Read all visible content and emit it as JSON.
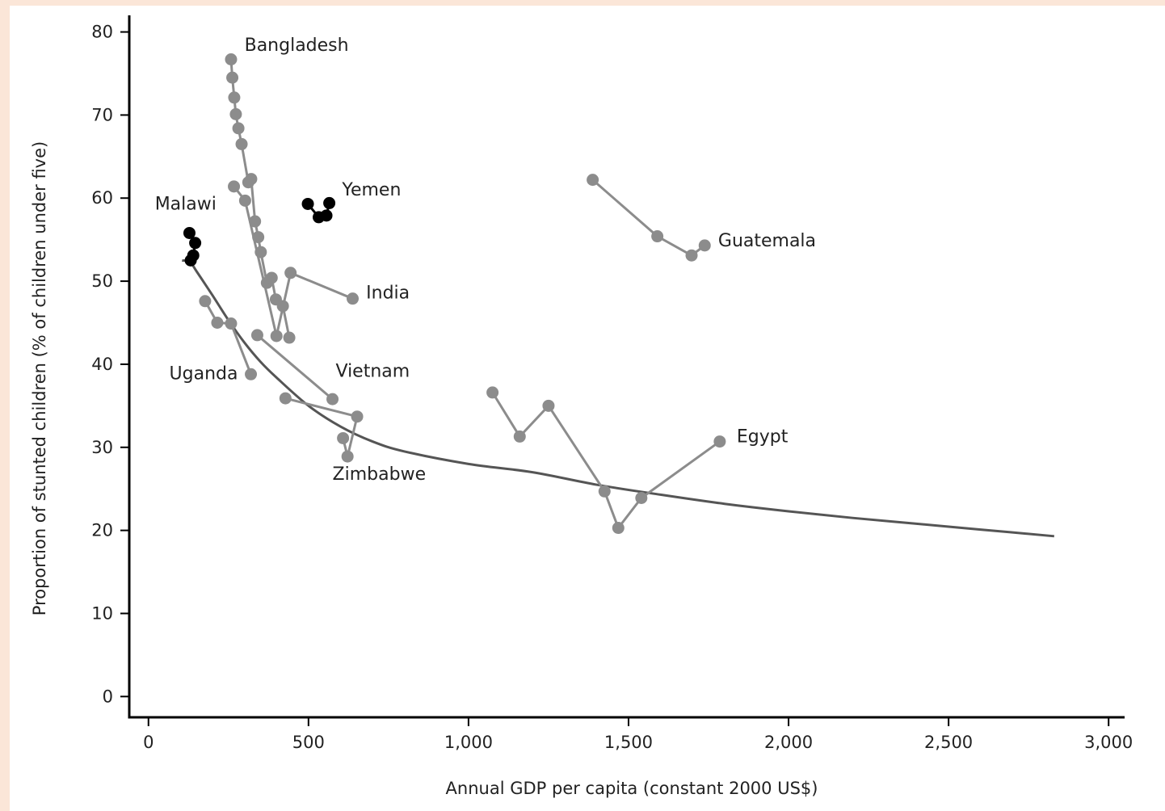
{
  "chart_data": {
    "type": "scatter",
    "xlabel": "Annual GDP per capita (constant 2000 US$)",
    "ylabel": "Proportion of stunted children (% of children under five)",
    "xlim": [
      -60,
      3050
    ],
    "ylim": [
      -2.5,
      82
    ],
    "x_ticks": [
      0,
      500,
      1000,
      1500,
      2000,
      2500,
      3000
    ],
    "x_tick_labels": [
      "0",
      "500",
      "1,000",
      "1,500",
      "2,000",
      "2,500",
      "3,000"
    ],
    "y_ticks": [
      0,
      10,
      20,
      30,
      40,
      50,
      60,
      70,
      80
    ],
    "y_tick_labels": [
      "0",
      "10",
      "20",
      "30",
      "40",
      "50",
      "60",
      "70",
      "80"
    ],
    "colors": {
      "grey_series": "#8c8c8c",
      "black_series": "#000000",
      "trend": "#555555",
      "axis": "#000000"
    },
    "series": [
      {
        "name": "Bangladesh",
        "color": "grey",
        "points": [
          [
            258,
            76.7
          ],
          [
            262,
            74.5
          ],
          [
            268,
            72.1
          ],
          [
            273,
            70.1
          ],
          [
            281,
            68.4
          ],
          [
            291,
            66.5
          ],
          [
            312,
            61.9
          ],
          [
            321,
            62.3
          ],
          [
            333,
            57.2
          ],
          [
            343,
            55.3
          ],
          [
            351,
            53.5
          ],
          [
            370,
            49.8
          ],
          [
            385,
            50.4
          ],
          [
            398,
            47.8
          ],
          [
            420,
            47.0
          ],
          [
            440,
            43.2
          ]
        ]
      },
      {
        "name": "India",
        "color": "grey",
        "points": [
          [
            267,
            61.4
          ],
          [
            302,
            59.7
          ],
          [
            400,
            43.4
          ],
          [
            444,
            51.0
          ],
          [
            638,
            47.9
          ]
        ]
      },
      {
        "name": "Vietnam",
        "color": "grey",
        "points": [
          [
            340,
            43.5
          ],
          [
            575,
            35.8
          ]
        ]
      },
      {
        "name": "Zimbabwe",
        "color": "grey",
        "points": [
          [
            428,
            35.9
          ],
          [
            652,
            33.7
          ],
          [
            622,
            28.9
          ],
          [
            608,
            31.1
          ]
        ]
      },
      {
        "name": "Uganda",
        "color": "grey",
        "points": [
          [
            177,
            47.6
          ],
          [
            215,
            45.0
          ],
          [
            258,
            44.9
          ],
          [
            320,
            38.8
          ]
        ]
      },
      {
        "name": "Yemen",
        "color": "black",
        "points": [
          [
            498,
            59.3
          ],
          [
            532,
            57.7
          ],
          [
            556,
            57.9
          ],
          [
            565,
            59.4
          ]
        ]
      },
      {
        "name": "Malawi",
        "color": "black",
        "points": [
          [
            128,
            55.8
          ],
          [
            146,
            54.6
          ],
          [
            140,
            53.1
          ],
          [
            132,
            52.5
          ]
        ]
      },
      {
        "name": "Guatemala",
        "color": "grey",
        "points": [
          [
            1388,
            62.2
          ],
          [
            1590,
            55.4
          ],
          [
            1697,
            53.1
          ],
          [
            1738,
            54.3
          ]
        ]
      },
      {
        "name": "Egypt",
        "color": "grey",
        "points": [
          [
            1075,
            36.6
          ],
          [
            1160,
            31.3
          ],
          [
            1250,
            35.0
          ],
          [
            1425,
            24.7
          ],
          [
            1468,
            20.3
          ],
          [
            1540,
            23.9
          ],
          [
            1785,
            30.7
          ]
        ]
      }
    ],
    "trend_curve": {
      "color": "dark grey",
      "points": [
        [
          105,
          52.5
        ],
        [
          130,
          52.3
        ],
        [
          150,
          51.2
        ],
        [
          200,
          48.3
        ],
        [
          250,
          45.3
        ],
        [
          300,
          42.6
        ],
        [
          350,
          40.3
        ],
        [
          400,
          38.4
        ],
        [
          500,
          35.0
        ],
        [
          600,
          32.5
        ],
        [
          700,
          30.7
        ],
        [
          800,
          29.5
        ],
        [
          1000,
          28.0
        ],
        [
          1200,
          27.0
        ],
        [
          1400,
          25.5
        ],
        [
          1600,
          24.3
        ],
        [
          1800,
          23.2
        ],
        [
          2000,
          22.3
        ],
        [
          2200,
          21.5
        ],
        [
          2400,
          20.8
        ],
        [
          2600,
          20.1
        ],
        [
          2830,
          19.3
        ]
      ]
    },
    "labels": [
      {
        "text": "Bangladesh",
        "x": 300,
        "y": 77.7,
        "anchor": "start"
      },
      {
        "text": "Yemen",
        "x": 605,
        "y": 60.3,
        "anchor": "start"
      },
      {
        "text": "Malawi",
        "x": 20,
        "y": 58.6,
        "anchor": "start"
      },
      {
        "text": "Guatemala",
        "x": 1780,
        "y": 54.2,
        "anchor": "start"
      },
      {
        "text": "India",
        "x": 680,
        "y": 47.9,
        "anchor": "start"
      },
      {
        "text": "Uganda",
        "x": 65,
        "y": 38.2,
        "anchor": "start"
      },
      {
        "text": "Vietnam",
        "x": 585,
        "y": 38.5,
        "anchor": "start"
      },
      {
        "text": "Zimbabwe",
        "x": 575,
        "y": 26.1,
        "anchor": "start"
      },
      {
        "text": "Egypt",
        "x": 1838,
        "y": 30.6,
        "anchor": "start"
      }
    ]
  }
}
